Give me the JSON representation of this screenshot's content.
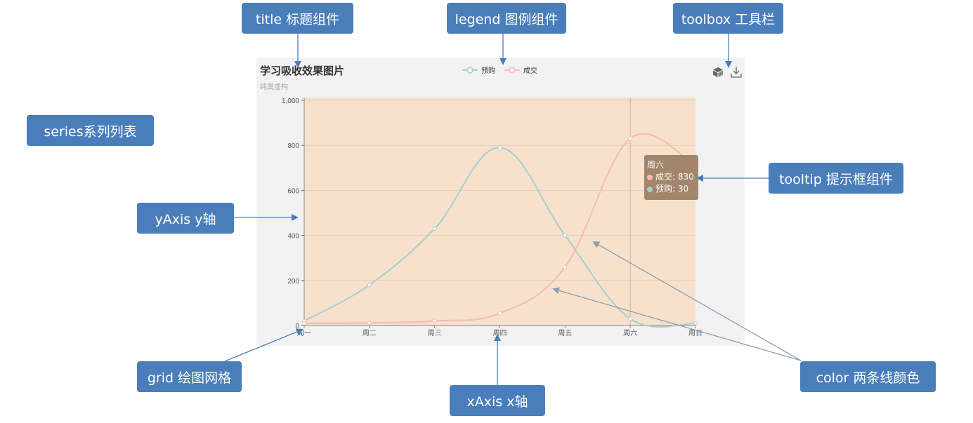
{
  "annotations": {
    "title": "title 标题组件",
    "legend": "legend 图例组件",
    "toolbox": "toolbox 工具栏",
    "series": "series系列列表",
    "tooltip": "tooltip 提示框组件",
    "yaxis": "yAxis y轴",
    "grid": "grid 绘图网格",
    "xaxis": "xAxis x轴",
    "color": "color 两条线颜色"
  },
  "chart_data": {
    "type": "line",
    "title": "学习吸收效果图片",
    "subtitle": "纯属虚构",
    "categories": [
      "周一",
      "周二",
      "周三",
      "周四",
      "周五",
      "周六",
      "周日"
    ],
    "series": [
      {
        "name": "预购",
        "values": [
          20,
          180,
          430,
          790,
          400,
          30,
          10
        ]
      },
      {
        "name": "成交",
        "values": [
          10,
          12,
          20,
          54,
          260,
          830,
          710
        ]
      }
    ],
    "ylim": [
      0,
      1000
    ],
    "yticks": [
      0,
      200,
      400,
      600,
      800,
      1000
    ],
    "ytick_labels": [
      "0",
      "200",
      "400",
      "600",
      "800",
      "1,000"
    ],
    "grid": true,
    "legend_position": "top-center",
    "colors": {
      "预购": "#a8cfcc",
      "成交": "#f6b9b4",
      "plot_background": "#f7e1cc",
      "panel_background": "#f2f2f2"
    },
    "tooltip": {
      "title": "周六",
      "rows": [
        {
          "series": "成交",
          "value": "830"
        },
        {
          "series": "预购",
          "value": "30"
        }
      ]
    },
    "toolbox": [
      "cube-icon",
      "download-icon"
    ]
  },
  "colors": {
    "annotation_box": "#4a7ebb",
    "annotation_arrow": "#4a7ebb",
    "color_arrow": "#8a9fb3"
  }
}
